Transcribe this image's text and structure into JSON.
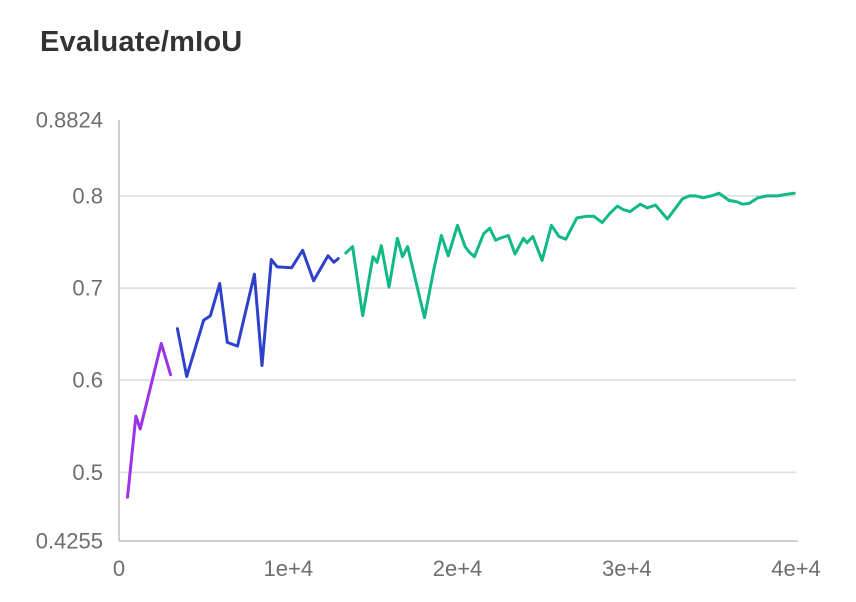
{
  "chart_data": {
    "type": "line",
    "title": "Evaluate/mIoU",
    "xlabel": "",
    "ylabel": "",
    "xlim": [
      0,
      40000
    ],
    "ylim": [
      0.4255,
      0.8824
    ],
    "grid": "horizontal",
    "legend": "none",
    "x_ticks": [
      {
        "value": 0,
        "label": "0"
      },
      {
        "value": 10000,
        "label": "1e+4"
      },
      {
        "value": 20000,
        "label": "2e+4"
      },
      {
        "value": 30000,
        "label": "3e+4"
      },
      {
        "value": 40000,
        "label": "4e+4"
      }
    ],
    "y_ticks": [
      {
        "value": 0.8824,
        "label": "0.8824",
        "grid": false
      },
      {
        "value": 0.8,
        "label": "0.8",
        "grid": true
      },
      {
        "value": 0.7,
        "label": "0.7",
        "grid": true
      },
      {
        "value": 0.6,
        "label": "0.6",
        "grid": true
      },
      {
        "value": 0.5,
        "label": "0.5",
        "grid": true
      },
      {
        "value": 0.4255,
        "label": "0.4255",
        "grid": false
      }
    ],
    "style": {
      "title_color": "#333333",
      "label_color": "#6e6e6e",
      "grid_color": "#e0e0e0",
      "axis_color": "#c8c8c8",
      "background": "#ffffff",
      "line_width": 3
    },
    "series": [
      {
        "name": "purple",
        "color": "#9c33e8",
        "points": [
          [
            500,
            0.473
          ],
          [
            1000,
            0.561
          ],
          [
            1250,
            0.547
          ],
          [
            2500,
            0.64
          ],
          [
            3050,
            0.606
          ]
        ]
      },
      {
        "name": "blue",
        "color": "#2e41cb",
        "points": [
          [
            3450,
            0.656
          ],
          [
            4000,
            0.604
          ],
          [
            5000,
            0.665
          ],
          [
            5400,
            0.67
          ],
          [
            5950,
            0.705
          ],
          [
            6400,
            0.641
          ],
          [
            7000,
            0.637
          ],
          [
            8000,
            0.715
          ],
          [
            8450,
            0.616
          ],
          [
            9000,
            0.731
          ],
          [
            9350,
            0.723
          ],
          [
            10200,
            0.722
          ],
          [
            10850,
            0.741
          ],
          [
            11500,
            0.708
          ],
          [
            12350,
            0.735
          ],
          [
            12700,
            0.728
          ],
          [
            12950,
            0.732
          ]
        ]
      },
      {
        "name": "green",
        "color": "#11b888",
        "points": [
          [
            13400,
            0.738
          ],
          [
            13800,
            0.745
          ],
          [
            14400,
            0.67
          ],
          [
            15000,
            0.734
          ],
          [
            15250,
            0.728
          ],
          [
            15500,
            0.746
          ],
          [
            15950,
            0.701
          ],
          [
            16450,
            0.754
          ],
          [
            16750,
            0.734
          ],
          [
            17050,
            0.745
          ],
          [
            18050,
            0.668
          ],
          [
            18600,
            0.72
          ],
          [
            19050,
            0.757
          ],
          [
            19450,
            0.735
          ],
          [
            20000,
            0.768
          ],
          [
            20450,
            0.745
          ],
          [
            20700,
            0.739
          ],
          [
            21000,
            0.734
          ],
          [
            21550,
            0.759
          ],
          [
            21900,
            0.765
          ],
          [
            22250,
            0.752
          ],
          [
            22500,
            0.754
          ],
          [
            23000,
            0.757
          ],
          [
            23400,
            0.737
          ],
          [
            23900,
            0.754
          ],
          [
            24100,
            0.749
          ],
          [
            24450,
            0.756
          ],
          [
            25000,
            0.73
          ],
          [
            25550,
            0.768
          ],
          [
            26000,
            0.756
          ],
          [
            26400,
            0.753
          ],
          [
            27050,
            0.776
          ],
          [
            27650,
            0.778
          ],
          [
            28050,
            0.778
          ],
          [
            28550,
            0.771
          ],
          [
            29000,
            0.781
          ],
          [
            29450,
            0.789
          ],
          [
            29800,
            0.785
          ],
          [
            30200,
            0.783
          ],
          [
            30800,
            0.791
          ],
          [
            31200,
            0.787
          ],
          [
            31700,
            0.79
          ],
          [
            32400,
            0.775
          ],
          [
            33300,
            0.797
          ],
          [
            33700,
            0.8
          ],
          [
            34100,
            0.8
          ],
          [
            34500,
            0.798
          ],
          [
            35000,
            0.8
          ],
          [
            35450,
            0.803
          ],
          [
            36050,
            0.795
          ],
          [
            36450,
            0.794
          ],
          [
            36850,
            0.791
          ],
          [
            37250,
            0.792
          ],
          [
            37750,
            0.798
          ],
          [
            38300,
            0.8
          ],
          [
            38900,
            0.8
          ],
          [
            39500,
            0.802
          ],
          [
            39900,
            0.803
          ]
        ]
      }
    ]
  }
}
